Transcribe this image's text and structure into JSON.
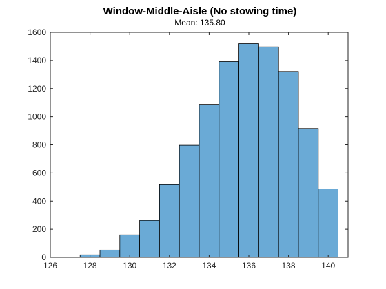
{
  "chart_data": {
    "type": "bar",
    "title": "Window-Middle-Aisle (No stowing time)",
    "subtitle": "Mean: 135.80",
    "xlabel": "",
    "ylabel": "",
    "xlim": [
      126,
      141
    ],
    "ylim": [
      0,
      1600
    ],
    "xticks": [
      "126",
      "128",
      "130",
      "132",
      "134",
      "136",
      "138",
      "140"
    ],
    "yticks": [
      "0",
      "200",
      "400",
      "600",
      "800",
      "1000",
      "1200",
      "1400",
      "1600"
    ],
    "bin_width": 1,
    "bins": [
      {
        "start": 127.5,
        "end": 128.5,
        "count": 18
      },
      {
        "start": 128.5,
        "end": 129.5,
        "count": 52
      },
      {
        "start": 129.5,
        "end": 130.5,
        "count": 160
      },
      {
        "start": 130.5,
        "end": 131.5,
        "count": 263
      },
      {
        "start": 131.5,
        "end": 132.5,
        "count": 517
      },
      {
        "start": 132.5,
        "end": 133.5,
        "count": 797
      },
      {
        "start": 133.5,
        "end": 134.5,
        "count": 1088
      },
      {
        "start": 134.5,
        "end": 135.5,
        "count": 1392
      },
      {
        "start": 135.5,
        "end": 136.5,
        "count": 1519
      },
      {
        "start": 136.5,
        "end": 137.5,
        "count": 1496
      },
      {
        "start": 137.5,
        "end": 138.5,
        "count": 1322
      },
      {
        "start": 138.5,
        "end": 139.5,
        "count": 916
      },
      {
        "start": 139.5,
        "end": 140.5,
        "count": 487
      }
    ],
    "grid": false,
    "box": true,
    "colors": {
      "bar_fill": "#6aaad6",
      "bar_edge": "#000000",
      "axis": "#262626"
    }
  }
}
